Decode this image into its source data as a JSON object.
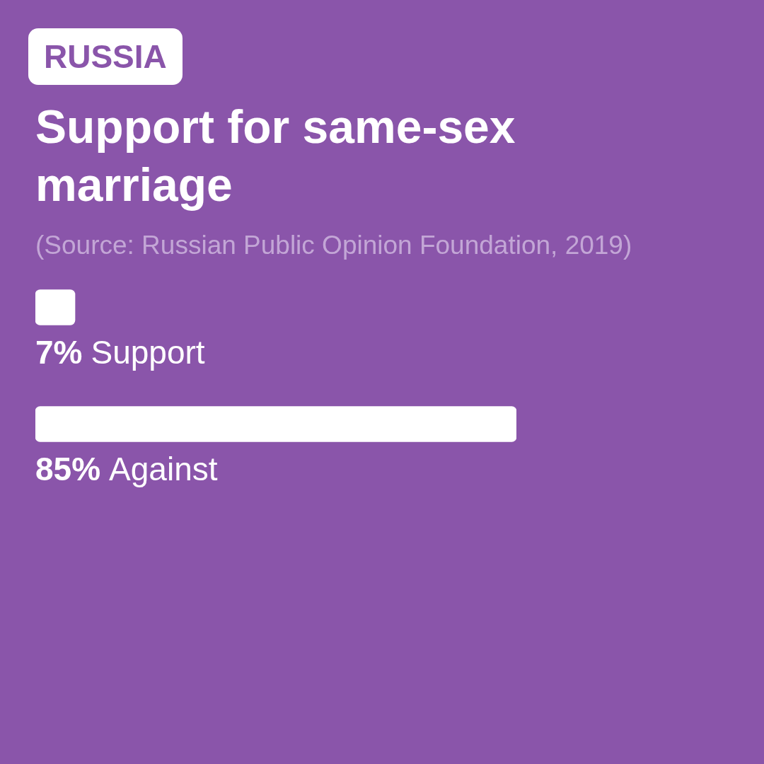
{
  "chart_data": {
    "type": "bar",
    "orientation": "horizontal",
    "title": "Support for same-sex marriage",
    "annotations": [
      "RUSSIA",
      "(Source: Russian Public Opinion Foundation, 2019)"
    ],
    "categories": [
      "Support",
      "Against"
    ],
    "values": [
      7,
      85
    ],
    "value_labels": [
      "7%",
      "85%"
    ],
    "color": "#ffffff",
    "tick_labels": false,
    "legend": false
  }
}
